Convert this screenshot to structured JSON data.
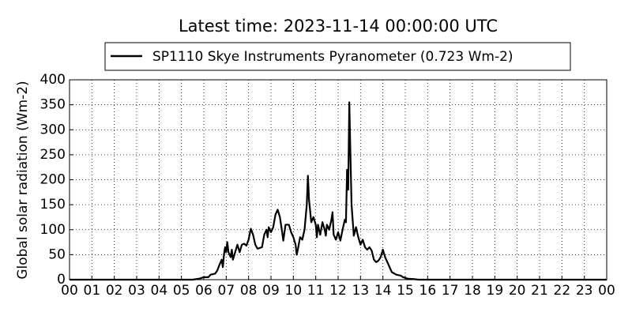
{
  "chart_data": {
    "type": "line",
    "title": "Latest time: 2023-11-14 00:00:00 UTC",
    "y_label": "Global solar radiation (Wm-2)",
    "x": [
      0,
      5.5,
      5.8,
      6.0,
      6.2,
      6.3,
      6.5,
      6.6,
      6.7,
      6.8,
      6.85,
      6.9,
      6.95,
      7.0,
      7.05,
      7.1,
      7.2,
      7.25,
      7.3,
      7.4,
      7.5,
      7.6,
      7.7,
      7.8,
      7.9,
      8.0,
      8.1,
      8.2,
      8.3,
      8.4,
      8.6,
      8.7,
      8.8,
      8.85,
      8.9,
      9.0,
      9.1,
      9.2,
      9.3,
      9.4,
      9.5,
      9.55,
      9.65,
      9.8,
      9.9,
      10.0,
      10.1,
      10.15,
      10.2,
      10.3,
      10.4,
      10.5,
      10.6,
      10.65,
      10.7,
      10.8,
      10.9,
      11.0,
      11.05,
      11.1,
      11.2,
      11.3,
      11.4,
      11.45,
      11.5,
      11.6,
      11.7,
      11.75,
      11.8,
      11.9,
      12.0,
      12.1,
      12.2,
      12.3,
      12.35,
      12.4,
      12.45,
      12.5,
      12.55,
      12.6,
      12.7,
      12.8,
      12.9,
      13.0,
      13.1,
      13.2,
      13.3,
      13.4,
      13.5,
      13.6,
      13.7,
      13.8,
      13.9,
      14.0,
      14.1,
      14.2,
      14.3,
      14.4,
      14.6,
      14.8,
      14.9,
      15.1,
      15.4,
      15.6,
      24
    ],
    "series": [
      {
        "name": "SP1110 Skye Instruments Pyranometer (0.723 Wm-2)",
        "color": "#000000",
        "values": [
          0,
          0,
          2,
          5,
          5,
          10,
          12,
          18,
          30,
          40,
          25,
          50,
          65,
          55,
          75,
          55,
          45,
          60,
          40,
          55,
          70,
          55,
          70,
          72,
          68,
          80,
          102,
          90,
          70,
          62,
          65,
          90,
          100,
          85,
          105,
          95,
          105,
          130,
          140,
          125,
          95,
          78,
          110,
          110,
          95,
          85,
          70,
          50,
          60,
          85,
          80,
          100,
          150,
          208,
          160,
          115,
          125,
          110,
          85,
          110,
          90,
          115,
          100,
          88,
          110,
          100,
          120,
          135,
          90,
          80,
          95,
          78,
          100,
          120,
          115,
          220,
          180,
          355,
          250,
          150,
          88,
          105,
          85,
          70,
          80,
          65,
          60,
          65,
          58,
          40,
          35,
          38,
          45,
          60,
          45,
          35,
          25,
          15,
          10,
          8,
          5,
          2,
          1,
          0,
          0
        ]
      }
    ],
    "xlim": [
      0,
      24
    ],
    "xticks": [
      {
        "value": 0,
        "label": "00"
      },
      {
        "value": 1,
        "label": "01"
      },
      {
        "value": 2,
        "label": "02"
      },
      {
        "value": 3,
        "label": "03"
      },
      {
        "value": 4,
        "label": "04"
      },
      {
        "value": 5,
        "label": "05"
      },
      {
        "value": 6,
        "label": "06"
      },
      {
        "value": 7,
        "label": "07"
      },
      {
        "value": 8,
        "label": "08"
      },
      {
        "value": 9,
        "label": "09"
      },
      10,
      11,
      12,
      13,
      14,
      15,
      16,
      17,
      18,
      19,
      20,
      21,
      22,
      23,
      {
        "value": 24,
        "label": "00"
      }
    ],
    "ylim": [
      0,
      400
    ],
    "yticks": [
      0,
      50,
      100,
      150,
      200,
      250,
      300,
      350,
      400
    ],
    "grid": true,
    "legend": "top"
  }
}
